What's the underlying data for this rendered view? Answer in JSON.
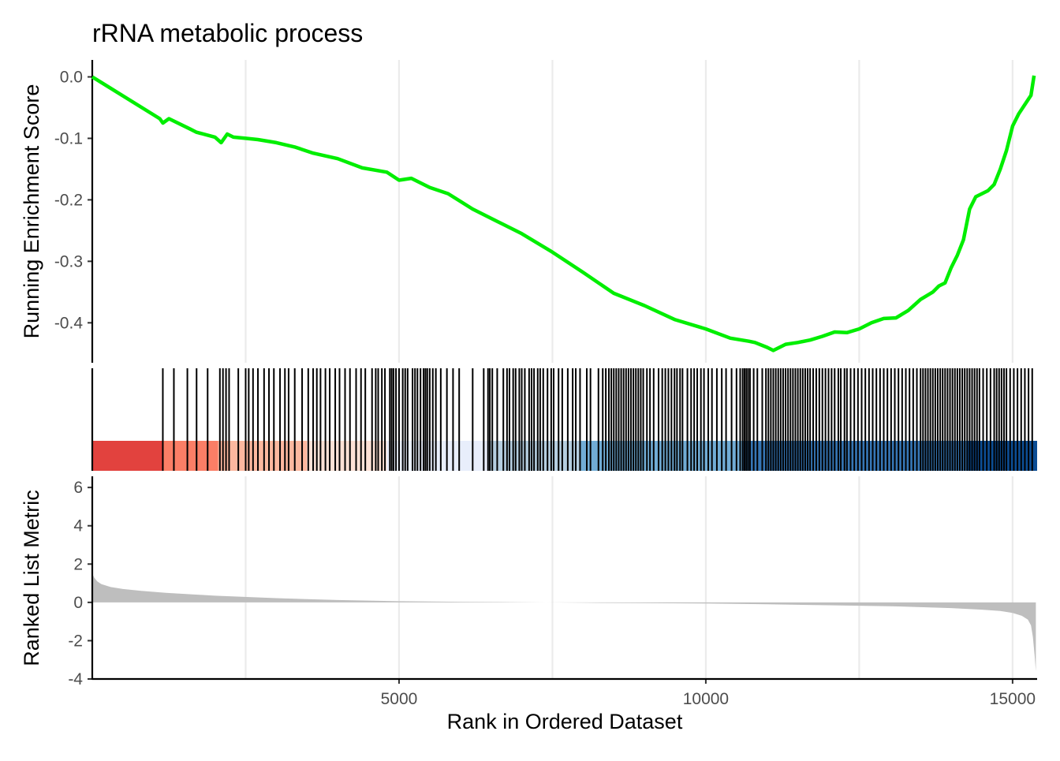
{
  "chart_data": [
    {
      "type": "line",
      "title": "rRNA metabolic process",
      "ylabel": "Running Enrichment Score",
      "xlabel": "",
      "xlim": [
        0,
        15400
      ],
      "ylim": [
        -0.465,
        0.025
      ],
      "yticks": [
        0.0,
        -0.1,
        -0.2,
        -0.3,
        -0.4
      ],
      "ytick_labels": [
        "0.0",
        "-0.1",
        "-0.2",
        "-0.3",
        "-0.4"
      ],
      "xgrid": [
        2500,
        5000,
        7500,
        10000,
        12500,
        15000
      ],
      "grid": true,
      "line_color": "#00ee00",
      "series": [
        {
          "x": [
            0,
            1100,
            1150,
            1250,
            1600,
            1700,
            2000,
            2100,
            2200,
            2300,
            2500,
            2700,
            3000,
            3300,
            3600,
            4000,
            4400,
            4800,
            5000,
            5200,
            5500,
            5800,
            6200,
            6600,
            7000,
            7500,
            8000,
            8500,
            9000,
            9500,
            10000,
            10400,
            10700,
            10800,
            11000,
            11100,
            11300,
            11500,
            11700,
            11900,
            12100,
            12300,
            12500,
            12700,
            12900,
            13100,
            13300,
            13500,
            13700,
            13800,
            13900,
            14000,
            14100,
            14200,
            14300,
            14400,
            14500,
            14600,
            14700,
            14800,
            14900,
            15000,
            15100,
            15200,
            15300,
            15350
          ],
          "y": [
            0.0,
            -0.068,
            -0.075,
            -0.068,
            -0.085,
            -0.09,
            -0.098,
            -0.107,
            -0.093,
            -0.098,
            -0.1,
            -0.102,
            -0.107,
            -0.114,
            -0.124,
            -0.133,
            -0.148,
            -0.155,
            -0.168,
            -0.165,
            -0.18,
            -0.19,
            -0.215,
            -0.235,
            -0.255,
            -0.285,
            -0.318,
            -0.352,
            -0.372,
            -0.395,
            -0.41,
            -0.425,
            -0.43,
            -0.432,
            -0.44,
            -0.445,
            -0.435,
            -0.432,
            -0.428,
            -0.422,
            -0.415,
            -0.416,
            -0.41,
            -0.4,
            -0.393,
            -0.392,
            -0.38,
            -0.362,
            -0.35,
            -0.34,
            -0.335,
            -0.31,
            -0.29,
            -0.265,
            -0.215,
            -0.195,
            -0.19,
            -0.185,
            -0.175,
            -0.15,
            -0.12,
            -0.08,
            -0.06,
            -0.045,
            -0.03,
            0.002
          ]
        }
      ]
    },
    {
      "type": "heatmap",
      "description_segments": [
        {
          "from": 0,
          "to": 1150,
          "color": "#e2423e"
        },
        {
          "from": 1150,
          "to": 2050,
          "color": "#fb7e66"
        },
        {
          "from": 2050,
          "to": 3500,
          "color": "#fcb89f"
        },
        {
          "from": 3500,
          "to": 4800,
          "color": "#fde2d6"
        },
        {
          "from": 4800,
          "to": 6450,
          "color": "#e8eefb"
        },
        {
          "from": 6450,
          "to": 7950,
          "color": "#b5cee0"
        },
        {
          "from": 7950,
          "to": 10600,
          "color": "#71acd5"
        },
        {
          "from": 10600,
          "to": 14250,
          "color": "#3676b5"
        },
        {
          "from": 14250,
          "to": 15400,
          "color": "#0c4d94"
        }
      ],
      "hits": [
        1150,
        1330,
        1550,
        1700,
        1880,
        2080,
        2130,
        2180,
        2230,
        2380,
        2500,
        2550,
        2620,
        2700,
        2800,
        2880,
        2960,
        3060,
        3140,
        3200,
        3300,
        3420,
        3520,
        3600,
        3660,
        3720,
        3800,
        3870,
        3960,
        4030,
        4120,
        4200,
        4300,
        4380,
        4450,
        4560,
        4620,
        4660,
        4720,
        4770,
        4850,
        4880,
        4910,
        4950,
        5000,
        5060,
        5100,
        5140,
        5220,
        5260,
        5300,
        5350,
        5400,
        5430,
        5460,
        5500,
        5550,
        5600,
        5680,
        5780,
        5880,
        5980,
        6200,
        6380,
        6450,
        6480,
        6520,
        6600,
        6700,
        6760,
        6800,
        6860,
        6900,
        6960,
        7000,
        7050,
        7120,
        7160,
        7200,
        7260,
        7300,
        7350,
        7420,
        7480,
        7520,
        7600,
        7660,
        7750,
        7830,
        7880,
        7950,
        8060,
        8120,
        8250,
        8320,
        8370,
        8420,
        8460,
        8500,
        8540,
        8580,
        8620,
        8660,
        8700,
        8740,
        8780,
        8820,
        8860,
        8900,
        8940,
        8980,
        9040,
        9090,
        9150,
        9230,
        9290,
        9340,
        9390,
        9440,
        9490,
        9530,
        9580,
        9620,
        9700,
        9760,
        9810,
        9860,
        9920,
        9970,
        10040,
        10100,
        10180,
        10260,
        10330,
        10420,
        10500,
        10560,
        10600,
        10630,
        10660,
        10690,
        10720,
        10780,
        10840,
        10920,
        10980,
        11020,
        11060,
        11100,
        11140,
        11180,
        11220,
        11260,
        11300,
        11340,
        11380,
        11420,
        11460,
        11500,
        11540,
        11580,
        11620,
        11660,
        11700,
        11750,
        11800,
        11850,
        11900,
        11950,
        12000,
        12050,
        12100,
        12160,
        12200,
        12260,
        12300,
        12360,
        12420,
        12480,
        12540,
        12600,
        12660,
        12720,
        12780,
        12840,
        12900,
        12960,
        13020,
        13080,
        13140,
        13200,
        13260,
        13320,
        13380,
        13440,
        13500,
        13540,
        13580,
        13620,
        13660,
        13700,
        13740,
        13780,
        13820,
        13860,
        13900,
        13940,
        13980,
        14020,
        14060,
        14100,
        14140,
        14180,
        14220,
        14260,
        14300,
        14340,
        14380,
        14420,
        14460,
        14520,
        14580,
        14640,
        14700,
        14740,
        14780,
        14820,
        14860,
        14900,
        14960,
        15020,
        15080,
        15140,
        15200,
        15260,
        15320
      ]
    },
    {
      "type": "area",
      "ylabel": "Ranked List Metric",
      "xlabel": "Rank in Ordered Dataset",
      "xlim": [
        0,
        15400
      ],
      "ylim": [
        -4,
        6.5
      ],
      "yticks": [
        6,
        4,
        2,
        0,
        -2,
        -4
      ],
      "ytick_labels": [
        "6",
        "4",
        "2",
        "0",
        "-2",
        "-4"
      ],
      "xticks": [
        5000,
        10000,
        15000
      ],
      "xtick_labels": [
        "5000",
        "10000",
        "15000"
      ],
      "fill_color": "#bebebe",
      "series": [
        {
          "x": [
            0,
            30,
            80,
            150,
            300,
            500,
            800,
            1200,
            2000,
            3000,
            4000,
            5000,
            6000,
            7000,
            8000,
            9000,
            10000,
            11000,
            12000,
            13000,
            14000,
            14500,
            14800,
            15000,
            15150,
            15250,
            15300,
            15330,
            15360,
            15380
          ],
          "y": [
            1.5,
            1.3,
            1.1,
            0.95,
            0.8,
            0.7,
            0.6,
            0.5,
            0.35,
            0.22,
            0.12,
            0.06,
            0.03,
            0.01,
            -0.02,
            -0.04,
            -0.06,
            -0.1,
            -0.15,
            -0.2,
            -0.3,
            -0.38,
            -0.45,
            -0.55,
            -0.7,
            -0.9,
            -1.2,
            -1.8,
            -2.8,
            -3.6
          ]
        }
      ]
    }
  ]
}
